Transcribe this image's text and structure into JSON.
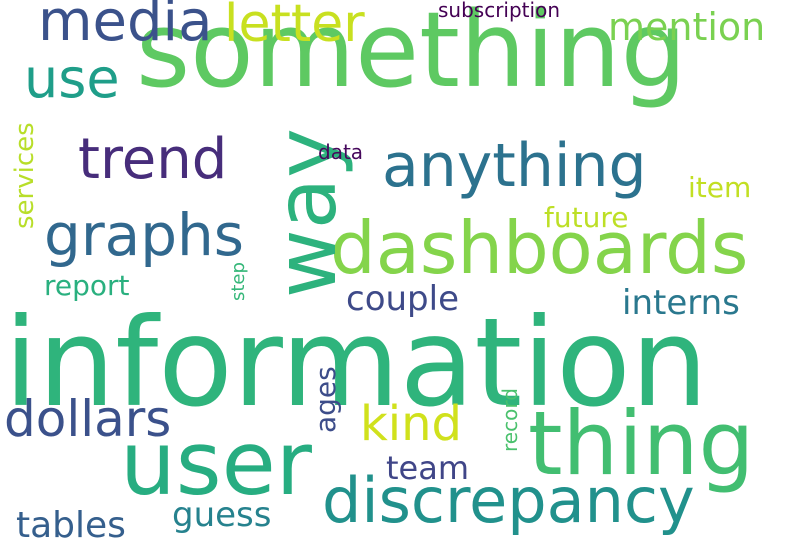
{
  "words": [
    {
      "text": "information",
      "color": "#2fb47c",
      "orientation": "horizontal"
    },
    {
      "text": "something",
      "color": "#5ec962",
      "orientation": "horizontal"
    },
    {
      "text": "thing",
      "color": "#42be71",
      "orientation": "horizontal"
    },
    {
      "text": "user",
      "color": "#27ad81",
      "orientation": "horizontal"
    },
    {
      "text": "dashboards",
      "color": "#84d44b",
      "orientation": "horizontal"
    },
    {
      "text": "way",
      "color": "#2db27d",
      "orientation": "vertical"
    },
    {
      "text": "discrepancy",
      "color": "#21918c",
      "orientation": "horizontal"
    },
    {
      "text": "anything",
      "color": "#2c728e",
      "orientation": "horizontal"
    },
    {
      "text": "graphs",
      "color": "#31688e",
      "orientation": "horizontal"
    },
    {
      "text": "trend",
      "color": "#472d7b",
      "orientation": "horizontal"
    },
    {
      "text": "media",
      "color": "#3b528b",
      "orientation": "horizontal"
    },
    {
      "text": "letter",
      "color": "#c8e020",
      "orientation": "horizontal"
    },
    {
      "text": "use",
      "color": "#1f9e89",
      "orientation": "horizontal"
    },
    {
      "text": "dollars",
      "color": "#3b518b",
      "orientation": "horizontal"
    },
    {
      "text": "kind",
      "color": "#d0e11c",
      "orientation": "horizontal"
    },
    {
      "text": "mention",
      "color": "#7ad151",
      "orientation": "horizontal"
    },
    {
      "text": "couple",
      "color": "#3e4a89",
      "orientation": "horizontal"
    },
    {
      "text": "interns",
      "color": "#2a788e",
      "orientation": "horizontal"
    },
    {
      "text": "tables",
      "color": "#355f8d",
      "orientation": "horizontal"
    },
    {
      "text": "guess",
      "color": "#26828e",
      "orientation": "horizontal"
    },
    {
      "text": "team",
      "color": "#404688",
      "orientation": "horizontal"
    },
    {
      "text": "item",
      "color": "#c2df23",
      "orientation": "horizontal"
    },
    {
      "text": "future",
      "color": "#bddf26",
      "orientation": "horizontal"
    },
    {
      "text": "report",
      "color": "#2ab07f",
      "orientation": "horizontal"
    },
    {
      "text": "services",
      "color": "#b8de29",
      "orientation": "vertical"
    },
    {
      "text": "ages",
      "color": "#3d4d8a",
      "orientation": "vertical"
    },
    {
      "text": "record",
      "color": "#4ac16d",
      "orientation": "vertical"
    },
    {
      "text": "subscription",
      "color": "#440154",
      "orientation": "horizontal"
    },
    {
      "text": "data",
      "color": "#46085c",
      "orientation": "horizontal"
    },
    {
      "text": "step",
      "color": "#35b779",
      "orientation": "vertical"
    }
  ]
}
